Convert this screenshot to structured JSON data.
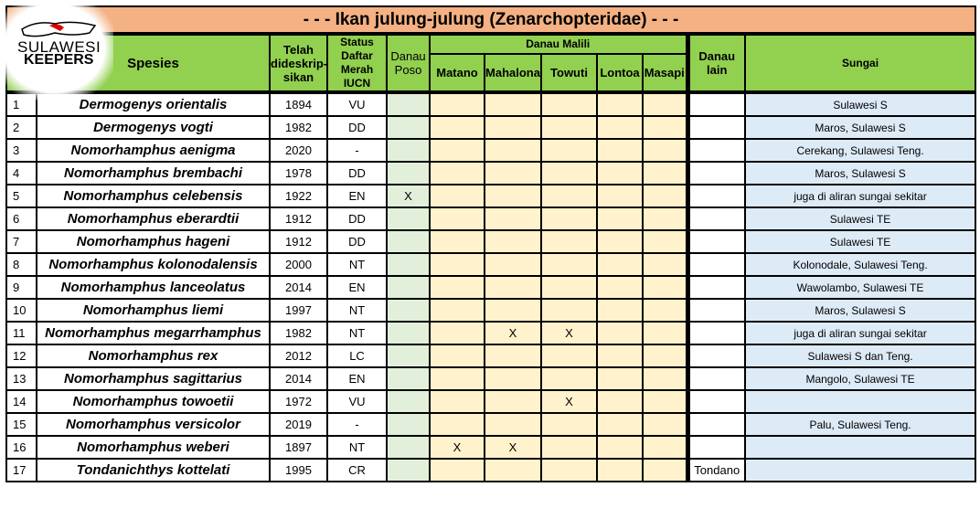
{
  "title": "- - -    Ikan julung-julung (Zenarchopteridae)    - - -",
  "logo": {
    "line1": "SULAWESI",
    "line2": "KEEPERS"
  },
  "headers": {
    "species": "Spesies",
    "described": "Telah dideskrip-sikan",
    "iucn": "Status Daftar Merah IUCN",
    "poso": "Danau Poso",
    "malili": "Danau Malili",
    "matano": "Matano",
    "mahalona": "Mahalona",
    "towuti": "Towuti",
    "lontoa": "Lontoa",
    "masapi": "Masapi",
    "other_lake": "Danau lain",
    "river": "Sungai"
  },
  "rows": [
    {
      "no": "1",
      "species": "Dermogenys orientalis",
      "year": "1894",
      "iucn": "VU",
      "poso": "",
      "matano": "",
      "mahalona": "",
      "towuti": "",
      "lontoa": "",
      "masapi": "",
      "other_lake": "",
      "river": "Sulawesi S"
    },
    {
      "no": "2",
      "species": "Dermogenys vogti",
      "year": "1982",
      "iucn": "DD",
      "poso": "",
      "matano": "",
      "mahalona": "",
      "towuti": "",
      "lontoa": "",
      "masapi": "",
      "other_lake": "",
      "river": "Maros, Sulawesi S"
    },
    {
      "no": "3",
      "species": "Nomorhamphus aenigma",
      "year": "2020",
      "iucn": "-",
      "poso": "",
      "matano": "",
      "mahalona": "",
      "towuti": "",
      "lontoa": "",
      "masapi": "",
      "other_lake": "",
      "river": "Cerekang, Sulawesi Teng."
    },
    {
      "no": "4",
      "species": "Nomorhamphus brembachi",
      "year": "1978",
      "iucn": "DD",
      "poso": "",
      "matano": "",
      "mahalona": "",
      "towuti": "",
      "lontoa": "",
      "masapi": "",
      "other_lake": "",
      "river": "Maros, Sulawesi S"
    },
    {
      "no": "5",
      "species": "Nomorhamphus celebensis",
      "year": "1922",
      "iucn": "EN",
      "poso": "X",
      "matano": "",
      "mahalona": "",
      "towuti": "",
      "lontoa": "",
      "masapi": "",
      "other_lake": "",
      "river": "juga di aliran sungai sekitar"
    },
    {
      "no": "6",
      "species": "Nomorhamphus eberardtii",
      "year": "1912",
      "iucn": "DD",
      "poso": "",
      "matano": "",
      "mahalona": "",
      "towuti": "",
      "lontoa": "",
      "masapi": "",
      "other_lake": "",
      "river": "Sulawesi TE"
    },
    {
      "no": "7",
      "species": "Nomorhamphus hageni",
      "year": "1912",
      "iucn": "DD",
      "poso": "",
      "matano": "",
      "mahalona": "",
      "towuti": "",
      "lontoa": "",
      "masapi": "",
      "other_lake": "",
      "river": "Sulawesi TE"
    },
    {
      "no": "8",
      "species": "Nomorhamphus kolonodalensis",
      "year": "2000",
      "iucn": "NT",
      "poso": "",
      "matano": "",
      "mahalona": "",
      "towuti": "",
      "lontoa": "",
      "masapi": "",
      "other_lake": "",
      "river": "Kolonodale, Sulawesi Teng."
    },
    {
      "no": "9",
      "species": "Nomorhamphus lanceolatus",
      "year": "2014",
      "iucn": "EN",
      "poso": "",
      "matano": "",
      "mahalona": "",
      "towuti": "",
      "lontoa": "",
      "masapi": "",
      "other_lake": "",
      "river": "Wawolambo, Sulawesi TE"
    },
    {
      "no": "10",
      "species": "Nomorhamphus liemi",
      "year": "1997",
      "iucn": "NT",
      "poso": "",
      "matano": "",
      "mahalona": "",
      "towuti": "",
      "lontoa": "",
      "masapi": "",
      "other_lake": "",
      "river": "Maros, Sulawesi S"
    },
    {
      "no": "11",
      "species": "Nomorhamphus megarrhamphus",
      "year": "1982",
      "iucn": "NT",
      "poso": "",
      "matano": "",
      "mahalona": "X",
      "towuti": "X",
      "lontoa": "",
      "masapi": "",
      "other_lake": "",
      "river": "juga di aliran sungai sekitar"
    },
    {
      "no": "12",
      "species": "Nomorhamphus rex",
      "year": "2012",
      "iucn": "LC",
      "poso": "",
      "matano": "",
      "mahalona": "",
      "towuti": "",
      "lontoa": "",
      "masapi": "",
      "other_lake": "",
      "river": "Sulawesi S dan Teng."
    },
    {
      "no": "13",
      "species": "Nomorhamphus sagittarius",
      "year": "2014",
      "iucn": "EN",
      "poso": "",
      "matano": "",
      "mahalona": "",
      "towuti": "",
      "lontoa": "",
      "masapi": "",
      "other_lake": "",
      "river": "Mangolo, Sulawesi TE"
    },
    {
      "no": "14",
      "species": "Nomorhamphus towoetii",
      "year": "1972",
      "iucn": "VU",
      "poso": "",
      "matano": "",
      "mahalona": "",
      "towuti": "X",
      "lontoa": "",
      "masapi": "",
      "other_lake": "",
      "river": ""
    },
    {
      "no": "15",
      "species": "Nomorhamphus versicolor",
      "year": "2019",
      "iucn": "-",
      "poso": "",
      "matano": "",
      "mahalona": "",
      "towuti": "",
      "lontoa": "",
      "masapi": "",
      "other_lake": "",
      "river": "Palu, Sulawesi Teng."
    },
    {
      "no": "16",
      "species": "Nomorhamphus weberi",
      "year": "1897",
      "iucn": "NT",
      "poso": "",
      "matano": "X",
      "mahalona": "X",
      "towuti": "",
      "lontoa": "",
      "masapi": "",
      "other_lake": "",
      "river": ""
    },
    {
      "no": "17",
      "species": "Tondanichthys kottelati",
      "year": "1995",
      "iucn": "CR",
      "poso": "",
      "matano": "",
      "mahalona": "",
      "towuti": "",
      "lontoa": "",
      "masapi": "",
      "other_lake": "Tondano",
      "river": ""
    }
  ],
  "colors": {
    "title_bg": "#f4b183",
    "header_bg": "#92d050",
    "poso_bg": "#e2efda",
    "malili_bg": "#fff2cc",
    "river_bg": "#ddebf7"
  }
}
